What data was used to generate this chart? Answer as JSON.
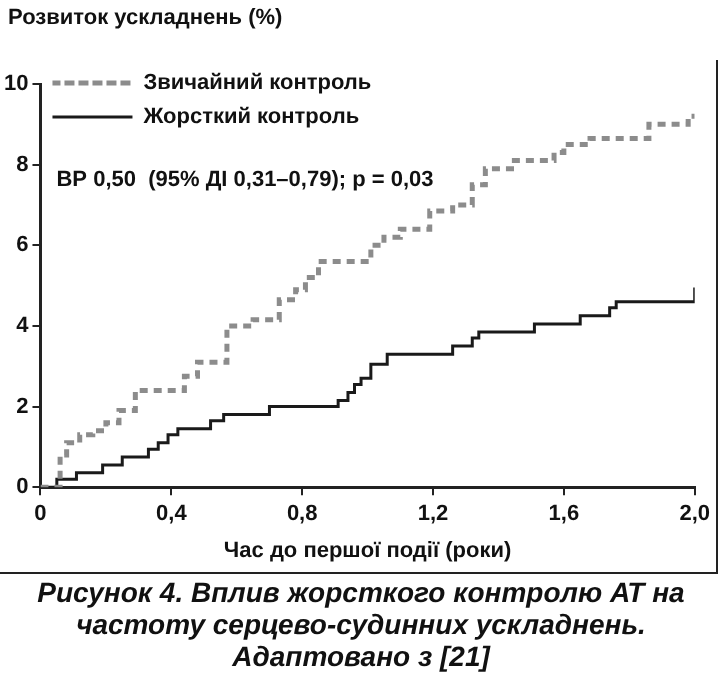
{
  "chart_data": {
    "type": "step",
    "ylabel": "Розвиток ускладнень (%)",
    "xlabel": "Час до першої події (роки)",
    "xlim": [
      0,
      2.0
    ],
    "xticks": [
      0,
      {
        "value": 0.4,
        "label": "0,4"
      },
      {
        "value": 0.8,
        "label": "0,8"
      },
      {
        "value": 1.2,
        "label": "1,2"
      },
      {
        "value": 1.6,
        "label": "1,6"
      },
      {
        "value": 2.0,
        "label": "2,0"
      }
    ],
    "ylim": [
      0,
      10
    ],
    "yticks": [
      0,
      2,
      4,
      6,
      8,
      10
    ],
    "grid": false,
    "legend": "top left",
    "annotations": [
      "ВР 0,50  (95% ДІ 0,31–0,79); p = 0,03",
      "Рисунок 4. Вплив жорсткого контролю АТ на частоту серцево-судинних ускладнень. Адаптовано з [21]"
    ],
    "series": [
      {
        "name": "Звичайний контроль",
        "color": "#8c8c8c",
        "line_style": "dashed",
        "x": [
          0,
          0.06,
          0.08,
          0.12,
          0.16,
          0.2,
          0.24,
          0.29,
          0.44,
          0.48,
          0.57,
          0.65,
          0.73,
          0.78,
          0.81,
          0.85,
          1.01,
          1.05,
          1.1,
          1.19,
          1.26,
          1.32,
          1.36,
          1.44,
          1.57,
          1.6,
          1.68,
          1.86,
          1.98,
          2.0
        ],
        "values": [
          0,
          0.8,
          1.1,
          1.3,
          1.4,
          1.6,
          1.9,
          2.4,
          2.75,
          3.1,
          4.0,
          4.15,
          4.65,
          4.9,
          5.2,
          5.6,
          6.0,
          6.2,
          6.4,
          6.85,
          7.0,
          7.5,
          7.9,
          8.1,
          8.3,
          8.5,
          8.65,
          9.0,
          9.2,
          9.2
        ]
      },
      {
        "name": "Жорсткий контроль",
        "color": "#1a1a1a",
        "line_style": "solid",
        "x": [
          0,
          0.05,
          0.11,
          0.19,
          0.25,
          0.33,
          0.36,
          0.39,
          0.42,
          0.52,
          0.56,
          0.7,
          0.91,
          0.94,
          0.96,
          0.98,
          1.01,
          1.06,
          1.26,
          1.32,
          1.34,
          1.51,
          1.65,
          1.74,
          1.76,
          2.0
        ],
        "values": [
          0,
          0.2,
          0.36,
          0.55,
          0.75,
          0.94,
          1.1,
          1.3,
          1.45,
          1.65,
          1.8,
          2.0,
          2.15,
          2.35,
          2.55,
          2.7,
          3.05,
          3.3,
          3.5,
          3.7,
          3.85,
          4.05,
          4.25,
          4.45,
          4.6,
          4.95
        ]
      }
    ]
  }
}
